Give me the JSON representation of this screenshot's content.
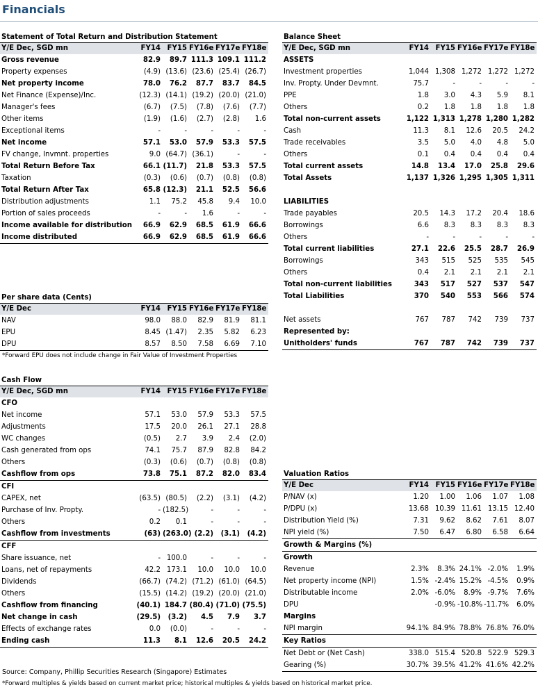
{
  "title": "Financials",
  "income": {
    "title": "Statement of Total Return and Distribution Statement",
    "header": [
      "Y/E Dec, SGD mn",
      "FY14",
      "FY15",
      "FY16e",
      "FY17e",
      "FY18e"
    ],
    "rows": [
      {
        "label": "Gross revenue",
        "v": [
          "82.9",
          "89.7",
          "111.3",
          "109.1",
          "111.2"
        ],
        "bold": true
      },
      {
        "label": "Property expenses",
        "v": [
          "(4.9)",
          "(13.6)",
          "(23.6)",
          "(25.4)",
          "(26.7)"
        ]
      },
      {
        "label": "Net property income",
        "v": [
          "78.0",
          "76.2",
          "87.7",
          "83.7",
          "84.5"
        ],
        "bold": true
      },
      {
        "label": "Net Finance (Expense)/Inc.",
        "v": [
          "(12.3)",
          "(14.1)",
          "(19.2)",
          "(20.0)",
          "(21.0)"
        ]
      },
      {
        "label": "Manager's fees",
        "v": [
          "(6.7)",
          "(7.5)",
          "(7.8)",
          "(7.6)",
          "(7.7)"
        ]
      },
      {
        "label": "Other items",
        "v": [
          "(1.9)",
          "(1.6)",
          "(2.7)",
          "(2.8)",
          "1.6"
        ]
      },
      {
        "label": "Exceptional items",
        "v": [
          "-",
          "-",
          "-",
          "-",
          "-"
        ]
      },
      {
        "label": "Net income",
        "v": [
          "57.1",
          "53.0",
          "57.9",
          "53.3",
          "57.5"
        ],
        "bold": true
      },
      {
        "label": "FV change, Invmnt. properties",
        "v": [
          "9.0",
          "(64.7)",
          "(36.1)",
          "-",
          "-"
        ]
      },
      {
        "label": "Total Return Before Tax",
        "v": [
          "66.1",
          "(11.7)",
          "21.8",
          "53.3",
          "57.5"
        ],
        "bold": true
      },
      {
        "label": "Taxation",
        "v": [
          "(0.3)",
          "(0.6)",
          "(0.7)",
          "(0.8)",
          "(0.8)"
        ]
      },
      {
        "label": "Total Return After Tax",
        "v": [
          "65.8",
          "(12.3)",
          "21.1",
          "52.5",
          "56.6"
        ],
        "bold": true
      },
      {
        "label": "Distribution adjustments",
        "v": [
          "1.1",
          "75.2",
          "45.8",
          "9.4",
          "10.0"
        ]
      },
      {
        "label": "Portion of sales proceeds",
        "v": [
          "-",
          "-",
          "1.6",
          "-",
          "-"
        ]
      },
      {
        "label": "Income available for distribution",
        "v": [
          "66.9",
          "62.9",
          "68.5",
          "61.9",
          "66.6"
        ],
        "bold": true
      },
      {
        "label": "Income distributed",
        "v": [
          "66.9",
          "62.9",
          "68.5",
          "61.9",
          "66.6"
        ],
        "bold": true,
        "line": true
      }
    ]
  },
  "per_share": {
    "title": "Per share data (Cents)",
    "header": [
      "Y/E Dec",
      "FY14",
      "FY15",
      "FY16e",
      "FY17e",
      "FY18e"
    ],
    "rows": [
      {
        "label": "NAV",
        "v": [
          "98.0",
          "88.0",
          "82.9",
          "81.9",
          "81.1"
        ]
      },
      {
        "label": "EPU",
        "v": [
          "8.45",
          "(1.47)",
          "2.35",
          "5.82",
          "6.23"
        ]
      },
      {
        "label": "DPU",
        "v": [
          "8.57",
          "8.50",
          "7.58",
          "6.69",
          "7.10"
        ],
        "line": true
      }
    ],
    "note": "*Forward EPU does not include change in Fair Value of Investment Properties"
  },
  "cash_flow": {
    "title": "Cash Flow",
    "header": [
      "Y/E Dec, SGD mn",
      "FY14",
      "FY15",
      "FY16e",
      "FY17e",
      "FY18e"
    ],
    "rows": [
      {
        "label": "CFO",
        "v": [
          "",
          "",
          "",
          "",
          ""
        ],
        "subhead": true
      },
      {
        "label": "Net income",
        "v": [
          "57.1",
          "53.0",
          "57.9",
          "53.3",
          "57.5"
        ]
      },
      {
        "label": "Adjustments",
        "v": [
          "17.5",
          "20.0",
          "26.1",
          "27.1",
          "28.8"
        ]
      },
      {
        "label": "WC changes",
        "v": [
          "(0.5)",
          "2.7",
          "3.9",
          "2.4",
          "(2.0)"
        ]
      },
      {
        "label": "Cash generated from ops",
        "v": [
          "74.1",
          "75.7",
          "87.9",
          "82.8",
          "84.2"
        ]
      },
      {
        "label": "Others",
        "v": [
          "(0.3)",
          "(0.6)",
          "(0.7)",
          "(0.8)",
          "(0.8)"
        ]
      },
      {
        "label": "Cashflow from ops",
        "v": [
          "73.8",
          "75.1",
          "87.2",
          "82.0",
          "83.4"
        ],
        "bold": true,
        "line": true
      },
      {
        "label": "CFI",
        "v": [
          "",
          "",
          "",
          "",
          ""
        ],
        "subhead": true
      },
      {
        "label": "CAPEX, net",
        "v": [
          "(63.5)",
          "(80.5)",
          "(2.2)",
          "(3.1)",
          "(4.2)"
        ]
      },
      {
        "label": "Purchase of Inv. Propty.",
        "v": [
          "-",
          "(182.5)",
          "-",
          "-",
          "-"
        ]
      },
      {
        "label": "Others",
        "v": [
          "0.2",
          "0.1",
          "-",
          "-",
          "-"
        ]
      },
      {
        "label": "Cashflow from investments",
        "v": [
          "(63)",
          "(263.0)",
          "(2.2)",
          "(3.1)",
          "(4.2)"
        ],
        "bold": true,
        "line": true
      },
      {
        "label": "CFF",
        "v": [
          "",
          "",
          "",
          "",
          ""
        ],
        "subhead": true
      },
      {
        "label": "Share issuance, net",
        "v": [
          "-",
          "100.0",
          "-",
          "-",
          "-"
        ]
      },
      {
        "label": "Loans, net of repayments",
        "v": [
          "42.2",
          "173.1",
          "10.0",
          "10.0",
          "10.0"
        ]
      },
      {
        "label": "Dividends",
        "v": [
          "(66.7)",
          "(74.2)",
          "(71.2)",
          "(61.0)",
          "(64.5)"
        ]
      },
      {
        "label": "Others",
        "v": [
          "(15.5)",
          "(14.2)",
          "(19.2)",
          "(20.0)",
          "(21.0)"
        ]
      },
      {
        "label": "Cashflow from financing",
        "v": [
          "(40.1)",
          "184.7",
          "(80.4)",
          "(71.0)",
          "(75.5)"
        ],
        "bold": true
      },
      {
        "label": "Net change in cash",
        "v": [
          "(29.5)",
          "(3.2)",
          "4.5",
          "7.9",
          "3.7"
        ],
        "bold": true
      },
      {
        "label": "Effects of exchange rates",
        "v": [
          "0.0",
          "(0.0)",
          "-",
          "-",
          "-"
        ]
      },
      {
        "label": "Ending cash",
        "v": [
          "11.3",
          "8.1",
          "12.6",
          "20.5",
          "24.2"
        ],
        "bold": true,
        "line": true
      }
    ]
  },
  "balance_sheet": {
    "title": "Balance Sheet",
    "header": [
      "Y/E Dec, SGD mn",
      "FY14",
      "FY15",
      "FY16e",
      "FY17e",
      "FY18e"
    ],
    "rows": [
      {
        "label": "ASSETS",
        "v": [
          "",
          "",
          "",
          "",
          ""
        ],
        "subhead": true
      },
      {
        "label": "Investment properties",
        "v": [
          "1,044",
          "1,308",
          "1,272",
          "1,272",
          "1,272"
        ]
      },
      {
        "label": "Inv. Propty. Under Devmnt.",
        "v": [
          "75.7",
          "-",
          "-",
          "-",
          "-"
        ]
      },
      {
        "label": "PPE",
        "v": [
          "1.8",
          "3.0",
          "4.3",
          "5.9",
          "8.1"
        ]
      },
      {
        "label": "Others",
        "v": [
          "0.2",
          "1.8",
          "1.8",
          "1.8",
          "1.8"
        ]
      },
      {
        "label": "Total non-current assets",
        "v": [
          "1,122",
          "1,313",
          "1,278",
          "1,280",
          "1,282"
        ],
        "bold": true
      },
      {
        "label": "Cash",
        "v": [
          "11.3",
          "8.1",
          "12.6",
          "20.5",
          "24.2"
        ]
      },
      {
        "label": "Trade receivables",
        "v": [
          "3.5",
          "5.0",
          "4.0",
          "4.8",
          "5.0"
        ]
      },
      {
        "label": "Others",
        "v": [
          "0.1",
          "0.4",
          "0.4",
          "0.4",
          "0.4"
        ]
      },
      {
        "label": "Total current assets",
        "v": [
          "14.8",
          "13.4",
          "17.0",
          "25.8",
          "29.6"
        ],
        "bold": true
      },
      {
        "label": "Total Assets",
        "v": [
          "1,137",
          "1,326",
          "1,295",
          "1,305",
          "1,311"
        ],
        "bold": true
      },
      {
        "label": "",
        "v": [
          "",
          "",
          "",
          "",
          ""
        ]
      },
      {
        "label": "LIABILITIES",
        "v": [
          "",
          "",
          "",
          "",
          ""
        ],
        "subhead": true
      },
      {
        "label": "Trade payables",
        "v": [
          "20.5",
          "14.3",
          "17.2",
          "20.4",
          "18.6"
        ]
      },
      {
        "label": "Borrowings",
        "v": [
          "6.6",
          "8.3",
          "8.3",
          "8.3",
          "8.3"
        ]
      },
      {
        "label": "Others",
        "v": [
          "-",
          "-",
          "-",
          "-",
          "-"
        ]
      },
      {
        "label": "Total current liabilities",
        "v": [
          "27.1",
          "22.6",
          "25.5",
          "28.7",
          "26.9"
        ],
        "bold": true
      },
      {
        "label": "Borrowings",
        "v": [
          "343",
          "515",
          "525",
          "535",
          "545"
        ]
      },
      {
        "label": "Others",
        "v": [
          "0.4",
          "2.1",
          "2.1",
          "2.1",
          "2.1"
        ]
      },
      {
        "label": "Total non-current liabilities",
        "v": [
          "343",
          "517",
          "527",
          "537",
          "547"
        ],
        "bold": true
      },
      {
        "label": "Total Liabilities",
        "v": [
          "370",
          "540",
          "553",
          "566",
          "574"
        ],
        "bold": true
      },
      {
        "label": "",
        "v": [
          "",
          "",
          "",
          "",
          ""
        ]
      },
      {
        "label": "Net assets",
        "v": [
          "767",
          "787",
          "742",
          "739",
          "737"
        ]
      },
      {
        "label": "Represented by:",
        "v": [
          "",
          "",
          "",
          "",
          ""
        ],
        "bold": true
      },
      {
        "label": "Unitholders' funds",
        "v": [
          "767",
          "787",
          "742",
          "739",
          "737"
        ],
        "bold": true,
        "line": true
      }
    ]
  },
  "valuation": {
    "title": "Valuation Ratios",
    "header": [
      "Y/E Dec",
      "FY14",
      "FY15",
      "FY16e",
      "FY17e",
      "FY18e"
    ],
    "rows": [
      {
        "label": "P/NAV (x)",
        "v": [
          "1.20",
          "1.00",
          "1.06",
          "1.07",
          "1.08"
        ]
      },
      {
        "label": "P/DPU (x)",
        "v": [
          "13.68",
          "10.39",
          "11.61",
          "13.15",
          "12.40"
        ]
      },
      {
        "label": "Distribution Yield (%)",
        "v": [
          "7.31",
          "9.62",
          "8.62",
          "7.61",
          "8.07"
        ]
      },
      {
        "label": "NPI yield (%)",
        "v": [
          "7.50",
          "6.47",
          "6.80",
          "6.58",
          "6.64"
        ],
        "line": true
      },
      {
        "label": "Growth & Margins (%)",
        "v": [
          "",
          "",
          "",
          "",
          ""
        ],
        "subhead": true,
        "line": true
      },
      {
        "label": "Growth",
        "v": [
          "",
          "",
          "",
          "",
          ""
        ],
        "subhead": true
      },
      {
        "label": "Revenue",
        "v": [
          "2.3%",
          "8.3%",
          "24.1%",
          "-2.0%",
          "1.9%"
        ]
      },
      {
        "label": "Net property income (NPI)",
        "v": [
          "1.5%",
          "-2.4%",
          "15.2%",
          "-4.5%",
          "0.9%"
        ]
      },
      {
        "label": "Distributable income",
        "v": [
          "2.0%",
          "-6.0%",
          "8.9%",
          "-9.7%",
          "7.6%"
        ]
      },
      {
        "label": "DPU",
        "v": [
          "",
          "-0.9%",
          "-10.8%",
          "-11.7%",
          "6.0%"
        ]
      },
      {
        "label": "Margins",
        "v": [
          "",
          "",
          "",
          "",
          ""
        ],
        "subhead": true
      },
      {
        "label": "NPI margin",
        "v": [
          "94.1%",
          "84.9%",
          "78.8%",
          "76.8%",
          "76.0%"
        ],
        "line": true
      },
      {
        "label": "Key Ratios",
        "v": [
          "",
          "",
          "",
          "",
          ""
        ],
        "subhead": true,
        "line": true
      },
      {
        "label": "Net Debt or (Net Cash)",
        "v": [
          "338.0",
          "515.4",
          "520.8",
          "522.9",
          "529.3"
        ]
      },
      {
        "label": "Gearing (%)",
        "v": [
          "30.7%",
          "39.5%",
          "41.2%",
          "41.6%",
          "42.2%"
        ],
        "line": true
      }
    ]
  },
  "footer": {
    "source": "Source: Company, Phillip Securities Research (Singapore) Estimates",
    "note": "*Forward multiples & yields based on current market price; historical multiples & yields based on historical market price."
  }
}
